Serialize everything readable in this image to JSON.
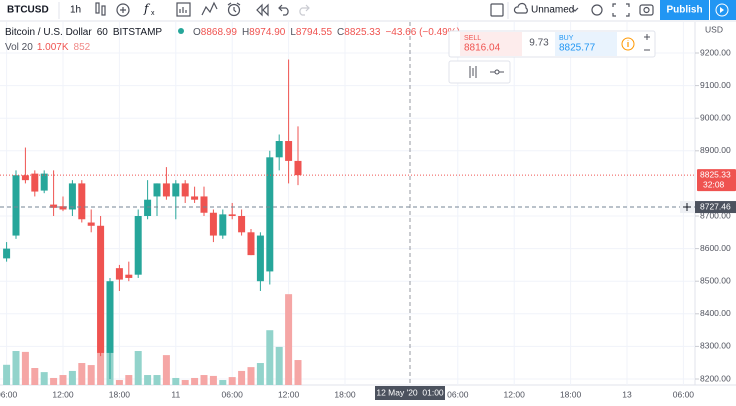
{
  "toolbar": {
    "symbol": "BTCUSD",
    "interval": "1h",
    "layout_name": "Unnamed",
    "publish": "Publish"
  },
  "legend": {
    "name": "Bitcoin / U.S. Dollar",
    "interval": "60",
    "exchange": "BITSTAMP",
    "ohlc": [
      {
        "key": "O",
        "value": "8868.99"
      },
      {
        "key": "H",
        "value": "8974.90"
      },
      {
        "key": "L",
        "value": "8794.55"
      },
      {
        "key": "C",
        "value": "8825.33"
      }
    ],
    "change": "−43.66 (−0.49%)",
    "volume_label": "Vol 20",
    "volume_ma": "1.007K",
    "volume_last": "852"
  },
  "trade": {
    "sell_label": "SELL",
    "sell_price": "8816.04",
    "spread": "9.73",
    "buy_label": "BUY",
    "buy_price": "8825.77"
  },
  "chart_data": {
    "type": "candlestick",
    "categories": [
      "06:00",
      null,
      null,
      null,
      null,
      null,
      "12:00",
      null,
      null,
      null,
      null,
      null,
      "18:00",
      null,
      null,
      null,
      null,
      null,
      "11",
      null,
      null,
      null,
      null,
      null,
      "06:00",
      null,
      null,
      null,
      null,
      null,
      "12:00",
      null,
      null,
      null,
      null,
      null,
      "18:00",
      null,
      null,
      null,
      null,
      null,
      null,
      null,
      null,
      null,
      null,
      null,
      "06:00",
      null,
      null,
      null,
      null,
      null,
      "12:00",
      null,
      null,
      null,
      null,
      null,
      "18:00",
      null,
      null,
      null,
      null,
      null,
      "13",
      null,
      null,
      null,
      null,
      null,
      "06:00"
    ],
    "open": [
      8570,
      8640,
      8825,
      8830,
      8778,
      8735,
      8730,
      8720,
      8800,
      8680,
      8670,
      8280,
      8540,
      8520,
      8520,
      8700,
      8760,
      8800,
      8760,
      8800,
      8760,
      8760,
      8710,
      8640,
      8705,
      8700,
      8650,
      8500,
      8530,
      8880,
      8930,
      8868.99,
      null,
      null,
      null,
      null,
      null,
      null,
      null,
      null,
      null,
      null,
      null,
      null,
      null,
      null,
      null,
      null,
      null,
      null,
      null,
      null,
      null,
      null,
      null,
      null,
      null,
      null,
      null,
      null,
      null,
      null,
      null,
      null,
      null,
      null,
      null,
      null,
      null,
      null,
      null,
      null,
      null
    ],
    "high": [
      8620,
      8840,
      8910,
      8840,
      8840,
      8840,
      8760,
      8810,
      8810,
      8720,
      8700,
      8510,
      8550,
      8560,
      8720,
      8810,
      8800,
      8850,
      8810,
      8810,
      8790,
      8790,
      8720,
      8720,
      8740,
      8720,
      8660,
      8650,
      8900,
      8950,
      9180,
      8974.9,
      null,
      null,
      null,
      null,
      null,
      null,
      null,
      null,
      null,
      null,
      null,
      null,
      null,
      null,
      null,
      null,
      null,
      null,
      null,
      null,
      null,
      null,
      null,
      null,
      null,
      null,
      null,
      null,
      null,
      null,
      null,
      null,
      null,
      null,
      null,
      null,
      null,
      null,
      null,
      null,
      null
    ],
    "low": [
      8560,
      8630,
      8800,
      8760,
      8770,
      8700,
      8715,
      8700,
      8680,
      8650,
      8270,
      8200,
      8470,
      8500,
      8510,
      8690,
      8700,
      8750,
      8690,
      8740,
      8740,
      8700,
      8620,
      8630,
      8690,
      8640,
      8580,
      8470,
      8490,
      8840,
      8800,
      8794.55,
      null,
      null,
      null,
      null,
      null,
      null,
      null,
      null,
      null,
      null,
      null,
      null,
      null,
      null,
      null,
      null,
      null,
      null,
      null,
      null,
      null,
      null,
      null,
      null,
      null,
      null,
      null,
      null,
      null,
      null,
      null,
      null,
      null,
      null,
      null,
      null,
      null,
      null,
      null,
      null,
      null
    ],
    "close": [
      8600,
      8825,
      8810,
      8775,
      8830,
      8725,
      8720,
      8800,
      8690,
      8670,
      8280,
      8500,
      8505,
      8510,
      8700,
      8750,
      8800,
      8760,
      8800,
      8760,
      8750,
      8710,
      8640,
      8705,
      8700,
      8650,
      8580,
      8640,
      8880,
      8930,
      8868.99,
      8825.33,
      null,
      null,
      null,
      null,
      null,
      null,
      null,
      null,
      null,
      null,
      null,
      null,
      null,
      null,
      null,
      null,
      null,
      null,
      null,
      null,
      null,
      null,
      null,
      null,
      null,
      null,
      null,
      null,
      null,
      null,
      null,
      null,
      null,
      null,
      null,
      null,
      null,
      null,
      null,
      null,
      null
    ],
    "volume": [
      690,
      1160,
      1130,
      580,
      440,
      240,
      340,
      480,
      750,
      680,
      2900,
      1160,
      170,
      340,
      1160,
      340,
      340,
      1020,
      240,
      170,
      240,
      340,
      310,
      170,
      270,
      480,
      610,
      750,
      1870,
      1300,
      3100,
      852,
      null,
      null,
      null,
      null,
      null,
      null,
      null,
      null,
      null,
      null,
      null,
      null,
      null,
      null,
      null,
      null,
      null,
      null,
      null,
      null,
      null,
      null,
      null,
      null,
      null,
      null,
      null,
      null,
      null,
      null,
      null,
      null,
      null,
      null,
      null,
      null,
      null,
      null,
      null,
      null,
      null
    ],
    "up_color": "#26a69a",
    "down_color": "#ef5350",
    "volume_up_color": "#92d3cb",
    "volume_down_color": "#f5a6a5",
    "ylim": [
      8181.6,
      9295.1
    ],
    "yticks": [
      {
        "value": 9200,
        "label": "9200.00"
      },
      {
        "value": 9100,
        "label": "9100.00"
      },
      {
        "value": 9000,
        "label": "9000.00"
      },
      {
        "value": 8900,
        "label": "8900.00"
      },
      {
        "value": 8700,
        "label": "8700.00"
      },
      {
        "value": 8600,
        "label": "8600.00"
      },
      {
        "value": 8500,
        "label": "8500.00"
      },
      {
        "value": 8400,
        "label": "8400.00"
      },
      {
        "value": 8300,
        "label": "8300.00"
      },
      {
        "value": 8200,
        "label": "8200.00"
      }
    ],
    "currency": "USD",
    "last_price": 8825.33,
    "countdown": "32:08",
    "crosshair": {
      "price": 8727.46,
      "time": "12 May '20  01:00"
    }
  }
}
